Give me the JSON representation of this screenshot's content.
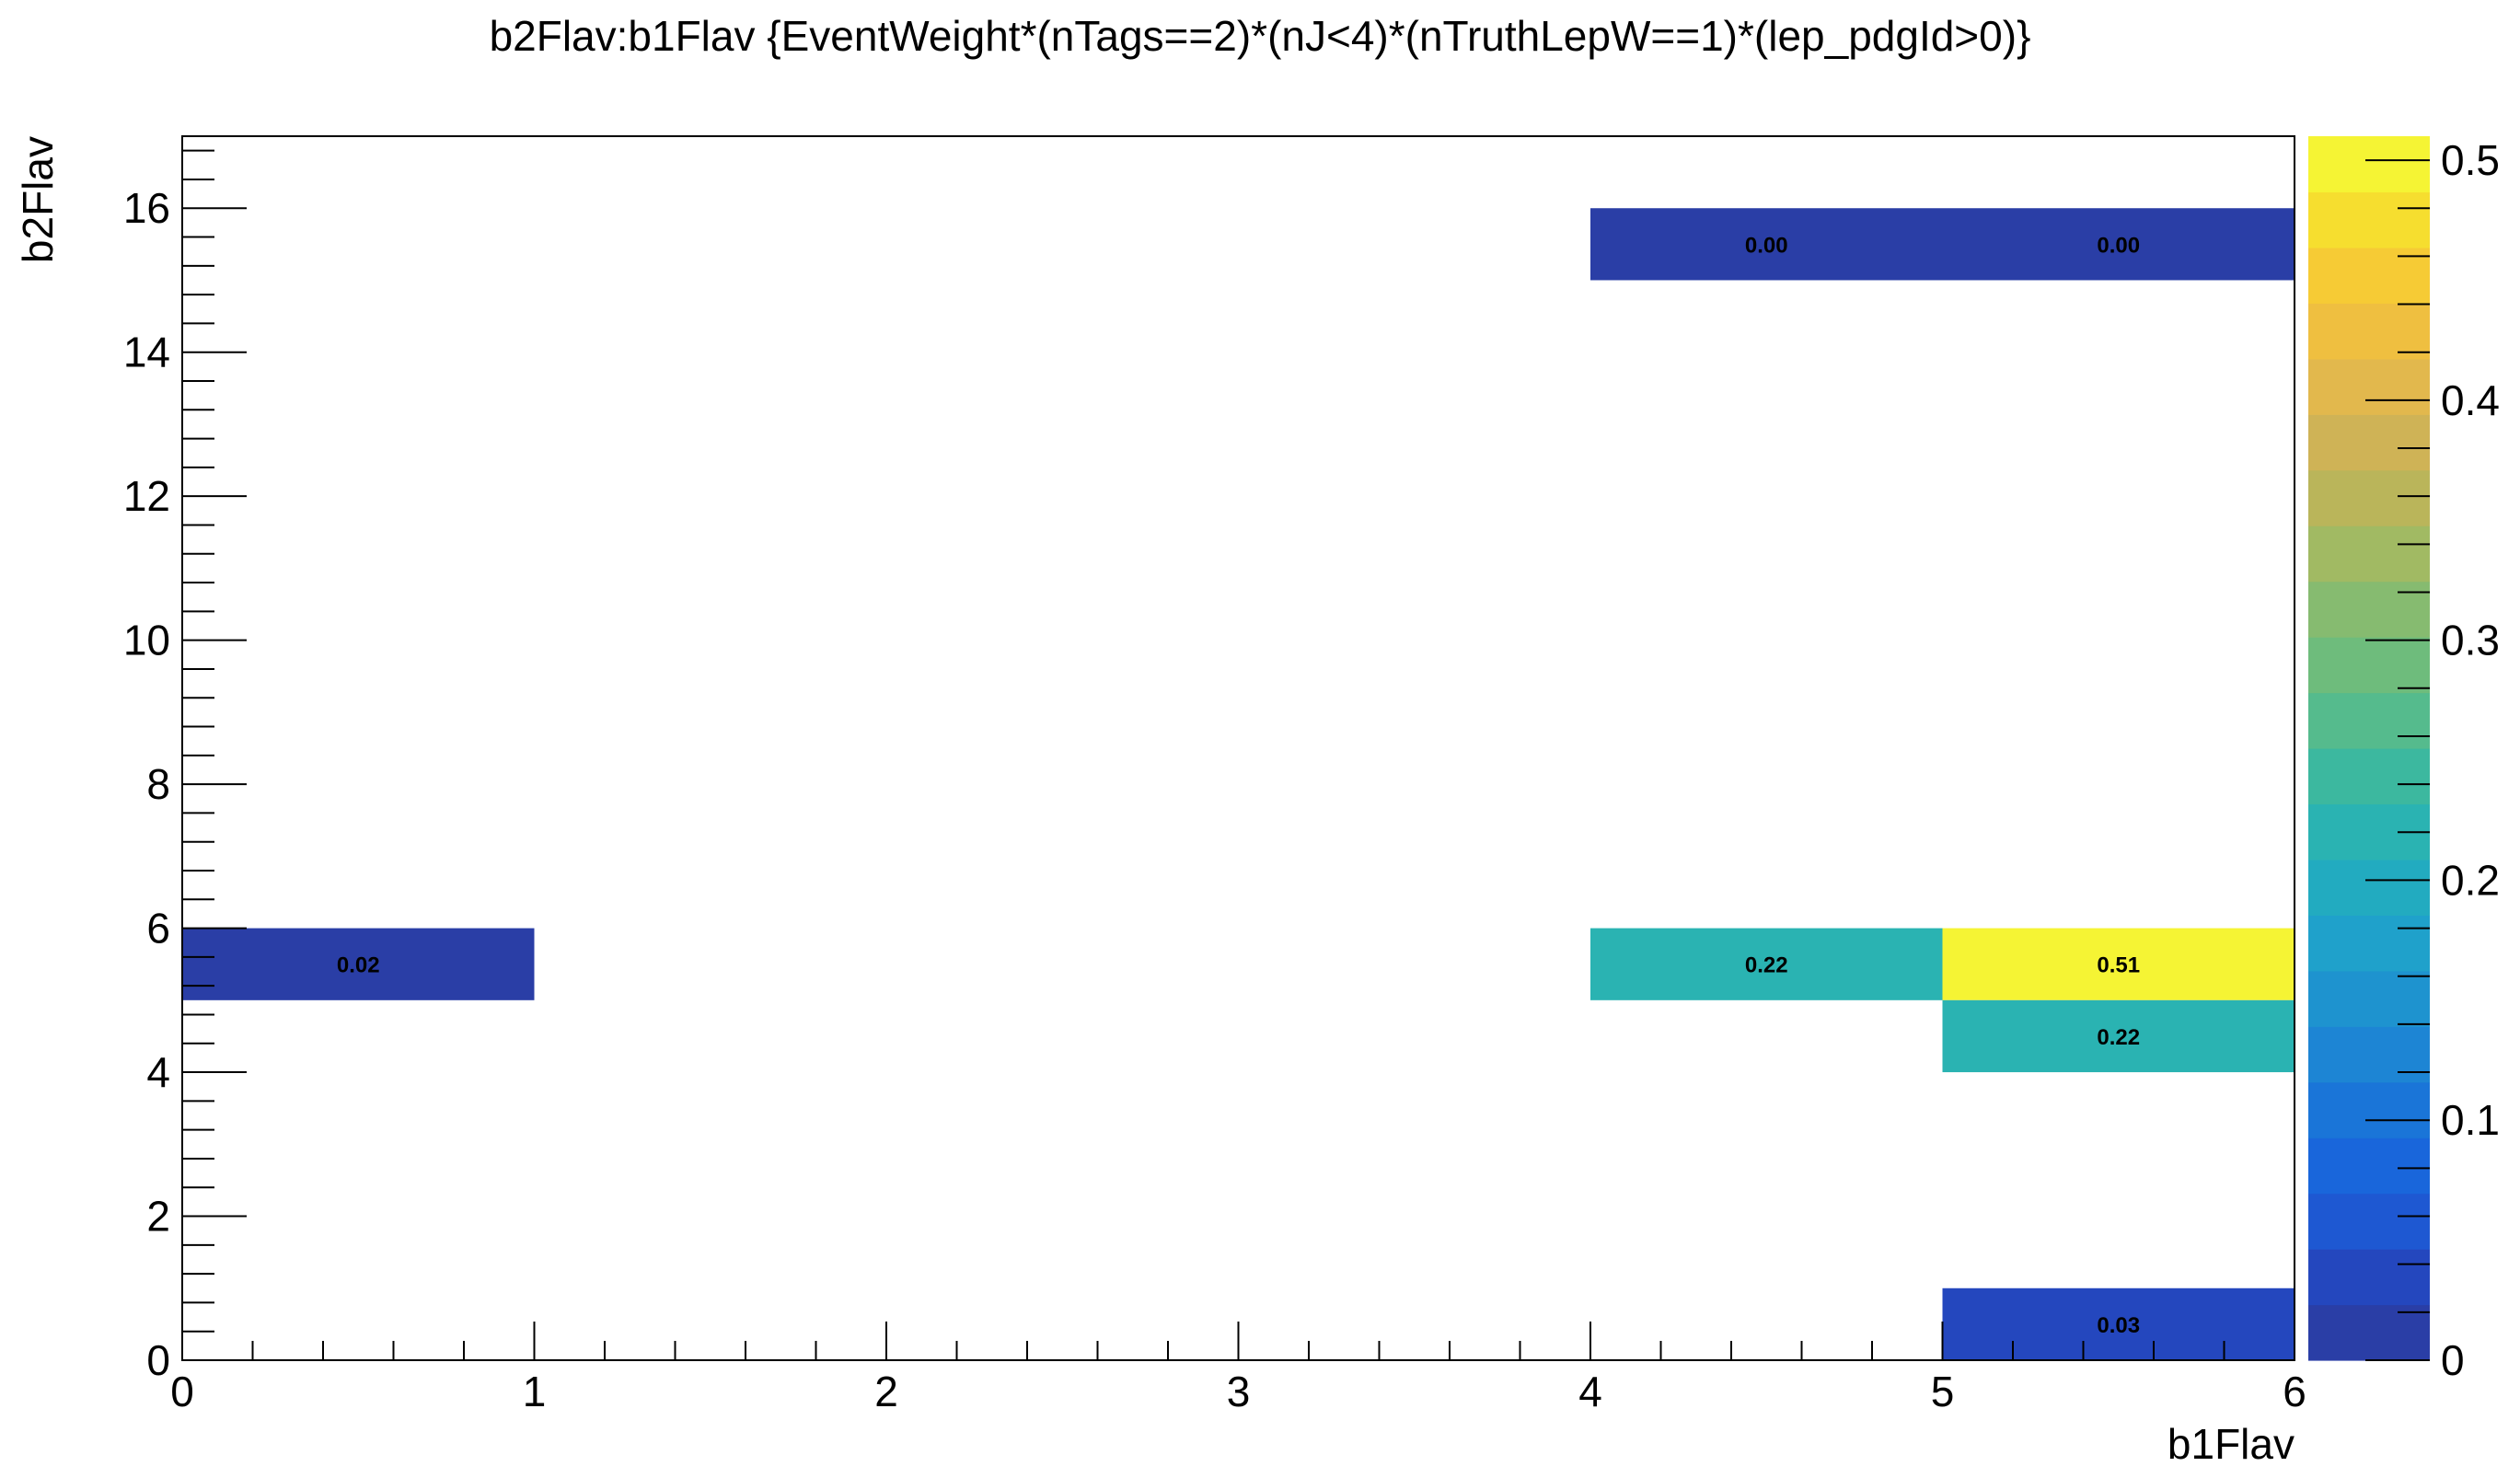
{
  "chart_data": {
    "type": "heatmap",
    "title": "b2Flav:b1Flav {EventWeight*(nTags==2)*(nJ<4)*(nTruthLepW==1)*(lep_pdgId>0)}",
    "xlabel": "b1Flav",
    "ylabel": "b2Flav",
    "xlim": [
      0,
      6
    ],
    "ylim": [
      0,
      17
    ],
    "x_ticks": [
      "0",
      "1",
      "2",
      "3",
      "4",
      "5",
      "6"
    ],
    "y_ticks": [
      "0",
      "2",
      "4",
      "6",
      "8",
      "10",
      "12",
      "14",
      "16"
    ],
    "bin_width_x": 1,
    "bin_width_y": 1,
    "cells": [
      {
        "x": 0,
        "y": 5,
        "value": 0.02,
        "label": "0.02"
      },
      {
        "x": 4,
        "y": 5,
        "value": 0.22,
        "label": "0.22"
      },
      {
        "x": 5,
        "y": 5,
        "value": 0.51,
        "label": "0.51"
      },
      {
        "x": 5,
        "y": 4,
        "value": 0.22,
        "label": "0.22"
      },
      {
        "x": 5,
        "y": 0,
        "value": 0.03,
        "label": "0.03"
      },
      {
        "x": 4,
        "y": 15,
        "value": 0.0,
        "label": "0.00"
      },
      {
        "x": 5,
        "y": 15,
        "value": 0.0,
        "label": "0.00"
      }
    ],
    "colorbar": {
      "min": 0,
      "max": 0.51,
      "ticks": [
        "0",
        "0.1",
        "0.2",
        "0.3",
        "0.4",
        "0.5"
      ],
      "palette": [
        "#2a3ea6",
        "#2447be",
        "#1e58d2",
        "#1966db",
        "#1a75d8",
        "#1d85d4",
        "#1e93cf",
        "#1fa1cb",
        "#22abc0",
        "#2ab3b2",
        "#3cb89f",
        "#55bb8d",
        "#6ebc7c",
        "#86bb70",
        "#a1ba63",
        "#bab55a",
        "#cfb356",
        "#e2b84d",
        "#efbf40",
        "#f6cb35",
        "#f6de2f",
        "#f5f434"
      ]
    },
    "grid": false
  }
}
